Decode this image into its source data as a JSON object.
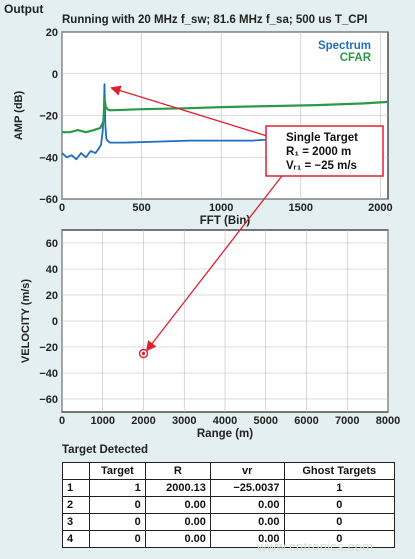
{
  "page_title": "Output",
  "caption": "Running with 20 MHz f_sw; 81.6 MHz f_sa; 500 us T_CPI",
  "colors": {
    "spectrum": "#1e6fc0",
    "cfar": "#2a9a4a",
    "annotation": "#e02030",
    "background": "#e3eff0"
  },
  "chart_data": [
    {
      "type": "line",
      "xlabel": "FFT (Bin)",
      "ylabel": "AMP (dB)",
      "xlim": [
        0,
        2048
      ],
      "ylim": [
        -60,
        20
      ],
      "xticks": [
        0,
        500,
        1000,
        1500,
        2000
      ],
      "yticks": [
        -60,
        -40,
        -20,
        0,
        20
      ],
      "grid": true,
      "legend": "top-right",
      "series": [
        {
          "name": "Spectrum",
          "color": "#1e6fc0",
          "x": [
            0,
            30,
            60,
            90,
            120,
            150,
            180,
            210,
            230,
            245,
            255,
            262,
            267,
            272,
            278,
            285,
            300,
            400,
            600,
            800,
            1000,
            1200,
            1300
          ],
          "y": [
            -38,
            -40,
            -39,
            -41,
            -38,
            -40,
            -37,
            -38,
            -36,
            -34,
            -28,
            -20,
            -5,
            -24,
            -31,
            -32,
            -33,
            -33,
            -32.5,
            -32,
            -32,
            -32,
            -31.5
          ]
        },
        {
          "name": "CFAR",
          "color": "#2a9a4a",
          "x": [
            0,
            50,
            100,
            150,
            200,
            240,
            260,
            267,
            275,
            285,
            300,
            500,
            800,
            1000,
            1300,
            1600,
            1900,
            2048
          ],
          "y": [
            -28,
            -28,
            -27,
            -28,
            -27,
            -26,
            -23,
            -12,
            -16,
            -17,
            -17.5,
            -17,
            -16.5,
            -16,
            -15.5,
            -15,
            -14.2,
            -13.5
          ]
        }
      ]
    },
    {
      "type": "scatter",
      "xlabel": "Range (m)",
      "ylabel": "VELOCITY (m/s)",
      "xlim": [
        0,
        8000
      ],
      "ylim": [
        -70,
        70
      ],
      "xticks": [
        0,
        1000,
        2000,
        3000,
        4000,
        5000,
        6000,
        7000,
        8000
      ],
      "yticks": [
        -60,
        -40,
        -20,
        0,
        20,
        40,
        60
      ],
      "grid": true,
      "series": [
        {
          "x": [
            2000
          ],
          "y": [
            -25
          ],
          "color": "#e02030"
        }
      ]
    }
  ],
  "annotation": {
    "title": "Single Target",
    "line1": "R₁ = 2000 m",
    "line2": "Vᵣ₁ = −25 m/s"
  },
  "target_table": {
    "title": "Target Detected",
    "headers": [
      "",
      "Target",
      "R",
      "vr",
      "Ghost Targets"
    ],
    "rows": [
      [
        "1",
        "1",
        "2000.13",
        "−25.0037",
        "1"
      ],
      [
        "2",
        "0",
        "0.00",
        "0.00",
        "0"
      ],
      [
        "3",
        "0",
        "0.00",
        "0.00",
        "0"
      ],
      [
        "4",
        "0",
        "0.00",
        "0.00",
        "0"
      ]
    ]
  },
  "watermark": "www.cntronics.com"
}
